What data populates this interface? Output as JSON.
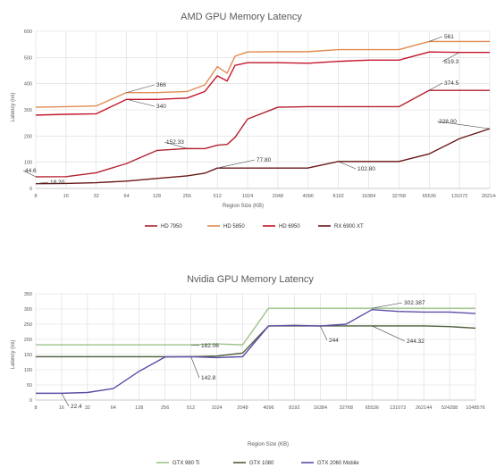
{
  "chart_data": [
    {
      "type": "line",
      "title": "AMD GPU Memory Latency",
      "xlabel": "Region Size (KB)",
      "ylabel": "Latency (ns)",
      "categories": [
        "8",
        "16",
        "32",
        "64",
        "128",
        "256",
        "512",
        "1024",
        "2048",
        "4096",
        "8192",
        "16384",
        "32768",
        "65536",
        "131072",
        "262144"
      ],
      "x": [
        8,
        16,
        32,
        64,
        128,
        256,
        384,
        512,
        640,
        768,
        1024,
        2048,
        4096,
        8192,
        16384,
        32768,
        65536,
        131072,
        262144
      ],
      "ylim": [
        0,
        600
      ],
      "yticks": [
        "0",
        "100",
        "200",
        "300",
        "400",
        "500",
        "600"
      ],
      "grid": true,
      "legend_position": "bottom",
      "series": [
        {
          "name": "HD 7950",
          "color": "#b3222d",
          "values": [
            44.6,
            45,
            60,
            95,
            145,
            152.33,
            152,
            165,
            168,
            195,
            265,
            310,
            312,
            312,
            312,
            312,
            374.5,
            374.5,
            374.5
          ]
        },
        {
          "name": "HD 5850",
          "color": "#e08a50",
          "values": [
            310,
            312,
            315,
            366,
            366,
            370,
            395,
            465,
            440,
            505,
            521,
            522,
            522,
            530,
            530,
            530,
            561,
            561,
            561
          ]
        },
        {
          "name": "HD 6950",
          "color": "#c4162a",
          "values": [
            280,
            283,
            285,
            340,
            340,
            345,
            370,
            430,
            410,
            470,
            480,
            480,
            478,
            485,
            490,
            490,
            521,
            519.3,
            519.3
          ]
        },
        {
          "name": "RX 6900 XT",
          "color": "#6b1818",
          "values": [
            18.2,
            19,
            22,
            28,
            38,
            48,
            58,
            77.8,
            77.8,
            77.8,
            77.8,
            77.8,
            78,
            102.8,
            102.8,
            102.8,
            132,
            190,
            228
          ]
        }
      ],
      "annotations": [
        "44.6",
        "18.20",
        "366",
        "340",
        "152.33",
        "77.80",
        "102.80",
        "561",
        "519.3",
        "374.5",
        "228.00"
      ]
    },
    {
      "type": "line",
      "title": "Nvidia GPU Memory Latency",
      "xlabel": "Region Size (KB)",
      "ylabel": "Latency (ns)",
      "categories": [
        "8",
        "16",
        "32",
        "64",
        "128",
        "256",
        "512",
        "1024",
        "2048",
        "4096",
        "8192",
        "16384",
        "32768",
        "65536",
        "131072",
        "262144",
        "524288",
        "1048576"
      ],
      "x": [
        8,
        16,
        32,
        64,
        128,
        256,
        512,
        1024,
        2048,
        4096,
        8192,
        16384,
        32768,
        65536,
        131072,
        262144,
        524288,
        1048576
      ],
      "ylim": [
        0,
        350
      ],
      "yticks": [
        "0",
        "50",
        "100",
        "150",
        "200",
        "250",
        "300",
        "350"
      ],
      "grid": true,
      "legend_position": "bottom",
      "series": [
        {
          "name": "GTX 980 Ti",
          "color": "#9cc48a",
          "values": [
            182.06,
            182.06,
            182.06,
            182.06,
            182.06,
            182.06,
            182.06,
            185,
            182,
            302.387,
            302.387,
            302.387,
            302.387,
            302.387,
            302.387,
            302.387,
            302.387,
            302.387
          ]
        },
        {
          "name": "GTX 1080",
          "color": "#4e5e3a",
          "values": [
            142.8,
            142.8,
            142.8,
            142.8,
            142.8,
            142.8,
            142.8,
            145,
            155,
            244.32,
            244.32,
            244.32,
            244.32,
            244.32,
            244.32,
            244.32,
            242,
            237
          ]
        },
        {
          "name": "GTX 2060 Mobile",
          "color": "#5b4fa6",
          "values": [
            22.4,
            22.4,
            25,
            38,
            95,
            142,
            142.8,
            140,
            143,
            244,
            246,
            244,
            250,
            298,
            292,
            290,
            290,
            285
          ]
        }
      ],
      "annotations": [
        "182.06",
        "142.8",
        "22.4",
        "244",
        "302.387",
        "244.32"
      ]
    }
  ]
}
